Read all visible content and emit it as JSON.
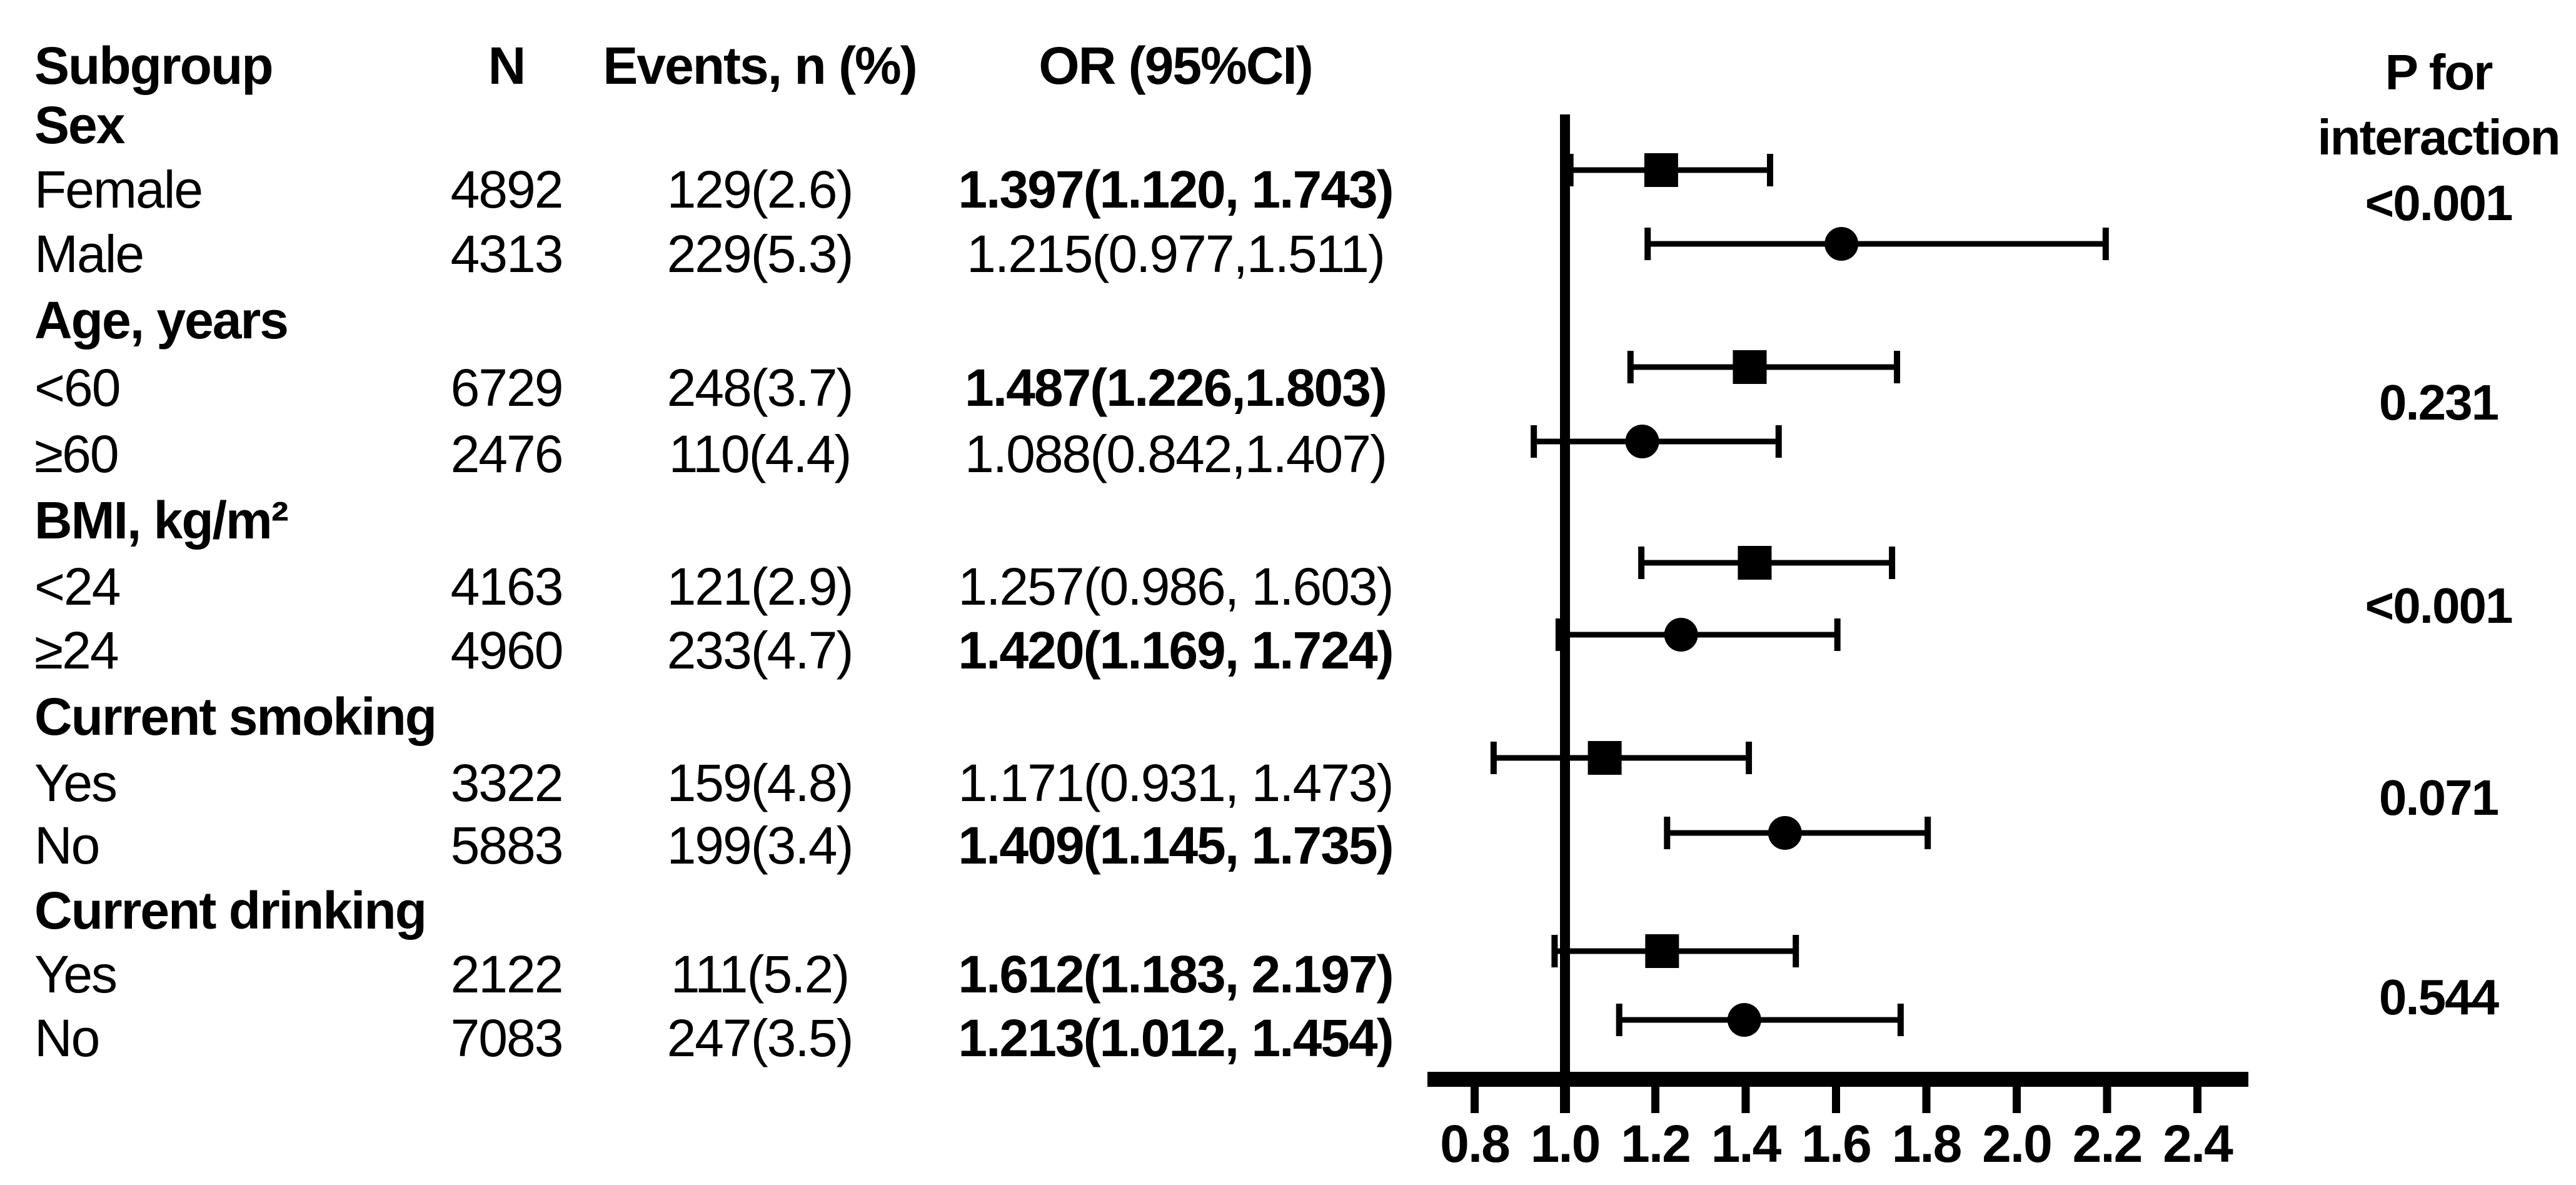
{
  "figure": {
    "headers": {
      "subgroup": "Subgroup",
      "n": "N",
      "events": "Events, n (%)",
      "or": "OR (95%CI)",
      "p_line1": "P for",
      "p_line2": "interaction"
    },
    "rows": [
      {
        "kind": "group",
        "label": "Sex"
      },
      {
        "kind": "item",
        "label": "Female",
        "n": "4892",
        "events": "129(2.6)",
        "or": "1.397(1.120, 1.743)",
        "or_bold": true
      },
      {
        "kind": "item",
        "label": "Male",
        "n": "4313",
        "events": "229(5.3)",
        "or": "1.215(0.977,1.511)",
        "or_bold": false
      },
      {
        "kind": "group",
        "label": "Age, years"
      },
      {
        "kind": "item",
        "label": "<60",
        "n": "6729",
        "events": "248(3.7)",
        "or": "1.487(1.226,1.803)",
        "or_bold": true
      },
      {
        "kind": "item",
        "label": "≥60",
        "n": "2476",
        "events": "110(4.4)",
        "or": "1.088(0.842,1.407)",
        "or_bold": false
      },
      {
        "kind": "group",
        "label": "BMI, kg/m²"
      },
      {
        "kind": "item",
        "label": "<24",
        "n": "4163",
        "events": "121(2.9)",
        "or": "1.257(0.986, 1.603)",
        "or_bold": false
      },
      {
        "kind": "item",
        "label": "≥24",
        "n": "4960",
        "events": "233(4.7)",
        "or": "1.420(1.169, 1.724)",
        "or_bold": true
      },
      {
        "kind": "group",
        "label": "Current smoking"
      },
      {
        "kind": "item",
        "label": "Yes",
        "n": "3322",
        "events": "159(4.8)",
        "or": "1.171(0.931, 1.473)",
        "or_bold": false
      },
      {
        "kind": "item",
        "label": "No",
        "n": "5883",
        "events": "199(3.4)",
        "or": "1.409(1.145, 1.735)",
        "or_bold": true
      },
      {
        "kind": "group",
        "label": "Current drinking"
      },
      {
        "kind": "item",
        "label": "Yes",
        "n": "2122",
        "events": "111(5.2)",
        "or": "1.612(1.183, 2.197)",
        "or_bold": true
      },
      {
        "kind": "item",
        "label": "No",
        "n": "7083",
        "events": "247(3.5)",
        "or": "1.213(1.012, 1.454)",
        "or_bold": true
      }
    ],
    "p_for_interaction": [
      "<0.001",
      "0.231",
      "<0.001",
      "0.071",
      "0.544"
    ]
  },
  "chart_data": {
    "type": "forest",
    "x_axis": {
      "ticks": [
        0.8,
        1.0,
        1.2,
        1.4,
        1.6,
        1.8,
        2.0,
        2.2,
        2.4
      ],
      "tick_labels": [
        "0.8",
        "1.0",
        "1.2",
        "1.4",
        "1.6",
        "1.8",
        "2.0",
        "2.2",
        "2.4"
      ],
      "reference_line": 1.0,
      "drawn_range": [
        0.69,
        2.51
      ],
      "label": "OR (95%CI)"
    },
    "series": [
      {
        "subgroup": "Female",
        "or": 1.397,
        "ci_low": 1.12,
        "ci_high": 1.743,
        "marker": "circle",
        "plot_row_top_to_bottom": 10
      },
      {
        "subgroup": "Male",
        "or": 1.215,
        "ci_low": 0.977,
        "ci_high": 1.511,
        "marker": "square",
        "plot_row_top_to_bottom": 9
      },
      {
        "subgroup": "<60",
        "or": 1.487,
        "ci_low": 1.226,
        "ci_high": 1.803,
        "marker": "circle",
        "plot_row_top_to_bottom": 8
      },
      {
        "subgroup": "≥60",
        "or": 1.088,
        "ci_low": 0.842,
        "ci_high": 1.407,
        "marker": "square",
        "plot_row_top_to_bottom": 7
      },
      {
        "subgroup": "<24",
        "or": 1.257,
        "ci_low": 0.986,
        "ci_high": 1.603,
        "marker": "circle",
        "plot_row_top_to_bottom": 6
      },
      {
        "subgroup": "≥24",
        "or": 1.42,
        "ci_low": 1.169,
        "ci_high": 1.724,
        "marker": "square",
        "plot_row_top_to_bottom": 5
      },
      {
        "subgroup": "Current smoking Yes",
        "or": 1.171,
        "ci_low": 0.931,
        "ci_high": 1.473,
        "marker": "circle",
        "plot_row_top_to_bottom": 4
      },
      {
        "subgroup": "Current smoking No",
        "or": 1.409,
        "ci_low": 1.145,
        "ci_high": 1.735,
        "marker": "square",
        "plot_row_top_to_bottom": 3
      },
      {
        "subgroup": "Current drinking Yes",
        "or": 1.612,
        "ci_low": 1.183,
        "ci_high": 2.197,
        "marker": "circle",
        "plot_row_top_to_bottom": 2
      },
      {
        "subgroup": "Current drinking No",
        "or": 1.213,
        "ci_low": 1.012,
        "ci_high": 1.454,
        "marker": "square",
        "plot_row_top_to_bottom": 1
      }
    ],
    "note": "Plot markers appear in reverse vertical order relative to the text rows; squares and circles alternate from the top row down."
  }
}
